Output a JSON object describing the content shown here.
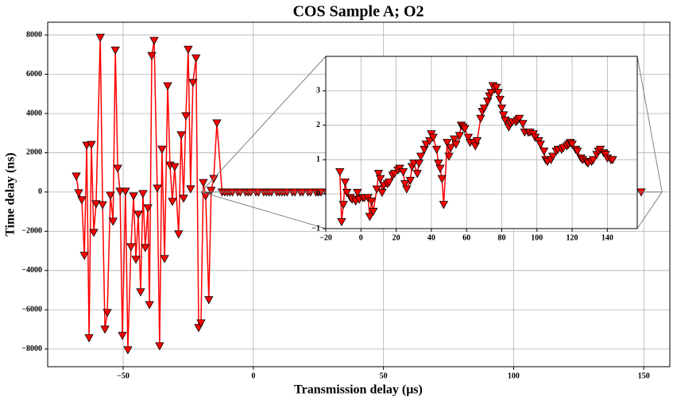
{
  "chart_data": [
    {
      "type": "line",
      "title": "COS Sample A; O2",
      "x_label": "Transmission delay (μs)",
      "y_label": "Time delay (ns)",
      "color": "#ff0000",
      "marker": "triangle-down",
      "grid": true,
      "xlim": [
        -79,
        160
      ],
      "ylim": [
        -8900,
        8650
      ],
      "xticks": [
        {
          "value": -50,
          "label": "−50"
        },
        0,
        50,
        100,
        150
      ],
      "yticks": [
        {
          "value": -8000,
          "label": "−8000"
        },
        {
          "value": -6000,
          "label": "−6000"
        },
        {
          "value": -4000,
          "label": "−4000"
        },
        {
          "value": -2000,
          "label": "−2000"
        },
        0,
        2000,
        4000,
        6000,
        8000
      ],
      "x": [
        -68,
        -67.1,
        -65.9,
        -64.9,
        -64,
        -63.1,
        -62.2,
        -61.3,
        -60.4,
        -58.8,
        -57.9,
        -57,
        -56.1,
        -54.9,
        -53.9,
        -53,
        -52.1,
        -51.2,
        -50.3,
        -49.1,
        -48.2,
        -47,
        -46,
        -45.1,
        -44.2,
        -43.3,
        -42.4,
        -41.5,
        -40.5,
        -39.9,
        -39,
        -38.1,
        -36.9,
        -36,
        -35.1,
        -34.1,
        -32.9,
        -32,
        -31.1,
        -30.2,
        -28.7,
        -27.7,
        -26.8,
        -25.9,
        -25,
        -24.1,
        -23.2,
        -22,
        -21,
        -20.1,
        -19.2,
        -18.3,
        -17.1,
        -16.2,
        -15.2,
        -14,
        -12,
        -11,
        -10,
        -9,
        -8,
        -6,
        -5,
        -3,
        -2,
        -1,
        1,
        2,
        4,
        5,
        6,
        7,
        9,
        10,
        11,
        12,
        13,
        15,
        16,
        18,
        19,
        21,
        22,
        24,
        25,
        26,
        28,
        29,
        30,
        32,
        33,
        34,
        36,
        37,
        39,
        40,
        41,
        43,
        44,
        45,
        46,
        47,
        49,
        50,
        51,
        53,
        54,
        56,
        57,
        58,
        59,
        61,
        62,
        64,
        65,
        66,
        68,
        69,
        70,
        72,
        73,
        74,
        75,
        76,
        77,
        78,
        79,
        80,
        81,
        82,
        84,
        85,
        86,
        88,
        89,
        90,
        92,
        93,
        95,
        96,
        98,
        99,
        101,
        102,
        104,
        105,
        106,
        108,
        109,
        111,
        112,
        114,
        115,
        117,
        118,
        119,
        120,
        122,
        123,
        125,
        126,
        128,
        129,
        131,
        132,
        134,
        135,
        136,
        138,
        139,
        140,
        142,
        143,
        149
      ],
      "values": [
        808,
        -40,
        -400,
        -3230,
        2380,
        -7430,
        2420,
        -2060,
        -600,
        7880,
        -650,
        -6990,
        -6140,
        -160,
        -1490,
        7230,
        1210,
        40,
        -7310,
        40,
        -8040,
        -2790,
        -200,
        -3430,
        -1130,
        -5090,
        -80,
        -2830,
        -810,
        -5740,
        6950,
        7720,
        200,
        -7840,
        2180,
        -3390,
        5410,
        1370,
        -480,
        1290,
        -2140,
        2910,
        -320,
        3880,
        7270,
        160,
        5580,
        6830,
        -6910,
        -6670,
        480,
        -200,
        -5490,
        80,
        690,
        3520,
        0.65,
        -0.8,
        -0.3,
        0.35,
        0.05,
        -0.1,
        -0.15,
        -0.2,
        0.05,
        -0.15,
        -0.1,
        -0.1,
        -0.1,
        -0.65,
        -0.2,
        -0.5,
        0.15,
        0.6,
        0.45,
        0.05,
        0.25,
        0.3,
        0.35,
        0.55,
        0.6,
        0.7,
        0.75,
        0.65,
        0.3,
        0.15,
        0.4,
        0.8,
        0.9,
        0.6,
        0.9,
        1.1,
        1.3,
        1.45,
        1.55,
        1.75,
        1.65,
        1.3,
        0.9,
        0.75,
        0.45,
        -0.3,
        1.5,
        1.1,
        1.35,
        1.6,
        1.45,
        1.7,
        2.0,
        1.95,
        1.9,
        1.65,
        1.5,
        1.5,
        1.4,
        1.55,
        2.2,
        2.4,
        2.5,
        2.7,
        2.85,
        2.95,
        3.15,
        3.05,
        3.1,
        2.95,
        2.75,
        2.5,
        2.3,
        2.15,
        1.95,
        2.05,
        2.1,
        2.1,
        2.15,
        2.2,
        2.05,
        1.8,
        1.8,
        1.8,
        1.75,
        1.65,
        1.55,
        1.45,
        1.25,
        1.0,
        0.95,
        1.0,
        1.1,
        1.25,
        1.3,
        1.3,
        1.35,
        1.4,
        1.45,
        1.5,
        1.45,
        1.3,
        1.25,
        1.05,
        1.0,
        0.95,
        0.9,
        0.95,
        1.0,
        1.15,
        1.25,
        1.3,
        1.2,
        1.15,
        1.05,
        1.0,
        1.0,
        0
      ]
    },
    {
      "type": "line",
      "color": "#ff0000",
      "marker": "triangle-down",
      "grid": true,
      "inset_of": 0,
      "xlim": [
        -20,
        157
      ],
      "ylim": [
        -1,
        4
      ],
      "xticks": [
        {
          "value": -20,
          "label": "−20"
        },
        0,
        20,
        40,
        60,
        80,
        100,
        120,
        140
      ],
      "yticks": [
        {
          "value": -1,
          "label": "−1"
        },
        0,
        1,
        2,
        3
      ],
      "x": [
        -12,
        -11,
        -10,
        -9,
        -8,
        -6,
        -5,
        -3,
        -2,
        -1,
        1,
        2,
        4,
        5,
        6,
        7,
        9,
        10,
        11,
        12,
        13,
        15,
        16,
        18,
        19,
        21,
        22,
        24,
        25,
        26,
        28,
        29,
        30,
        32,
        33,
        34,
        36,
        37,
        39,
        40,
        41,
        43,
        44,
        45,
        46,
        47,
        49,
        50,
        51,
        53,
        54,
        56,
        57,
        58,
        59,
        61,
        62,
        64,
        65,
        66,
        68,
        69,
        70,
        72,
        73,
        74,
        75,
        76,
        77,
        78,
        79,
        80,
        81,
        82,
        84,
        85,
        86,
        88,
        89,
        90,
        92,
        93,
        95,
        96,
        98,
        99,
        101,
        102,
        104,
        105,
        106,
        108,
        109,
        111,
        112,
        114,
        115,
        117,
        118,
        119,
        120,
        122,
        123,
        125,
        126,
        128,
        129,
        131,
        132,
        134,
        135,
        136,
        138,
        139,
        140,
        142,
        143
      ],
      "values": [
        0.65,
        -0.8,
        -0.3,
        0.35,
        0.05,
        -0.1,
        -0.15,
        -0.2,
        0.05,
        -0.15,
        -0.1,
        -0.1,
        -0.1,
        -0.65,
        -0.2,
        -0.5,
        0.15,
        0.6,
        0.45,
        0.05,
        0.25,
        0.3,
        0.35,
        0.55,
        0.6,
        0.7,
        0.75,
        0.65,
        0.3,
        0.15,
        0.4,
        0.8,
        0.9,
        0.6,
        0.9,
        1.1,
        1.3,
        1.45,
        1.55,
        1.75,
        1.65,
        1.3,
        0.9,
        0.75,
        0.45,
        -0.3,
        1.5,
        1.1,
        1.35,
        1.6,
        1.45,
        1.7,
        2.0,
        1.95,
        1.9,
        1.65,
        1.5,
        1.5,
        1.4,
        1.55,
        2.2,
        2.4,
        2.5,
        2.7,
        2.85,
        2.95,
        3.15,
        3.05,
        3.1,
        2.95,
        2.75,
        2.5,
        2.3,
        2.15,
        1.95,
        2.05,
        2.1,
        2.1,
        2.15,
        2.2,
        2.05,
        1.8,
        1.8,
        1.8,
        1.75,
        1.65,
        1.55,
        1.45,
        1.25,
        1.0,
        0.95,
        1.0,
        1.1,
        1.25,
        1.3,
        1.3,
        1.35,
        1.4,
        1.45,
        1.5,
        1.45,
        1.3,
        1.25,
        1.05,
        1.0,
        0.95,
        0.9,
        0.95,
        1.0,
        1.15,
        1.25,
        1.3,
        1.2,
        1.15,
        1.05,
        1.0,
        1.0
      ]
    }
  ]
}
